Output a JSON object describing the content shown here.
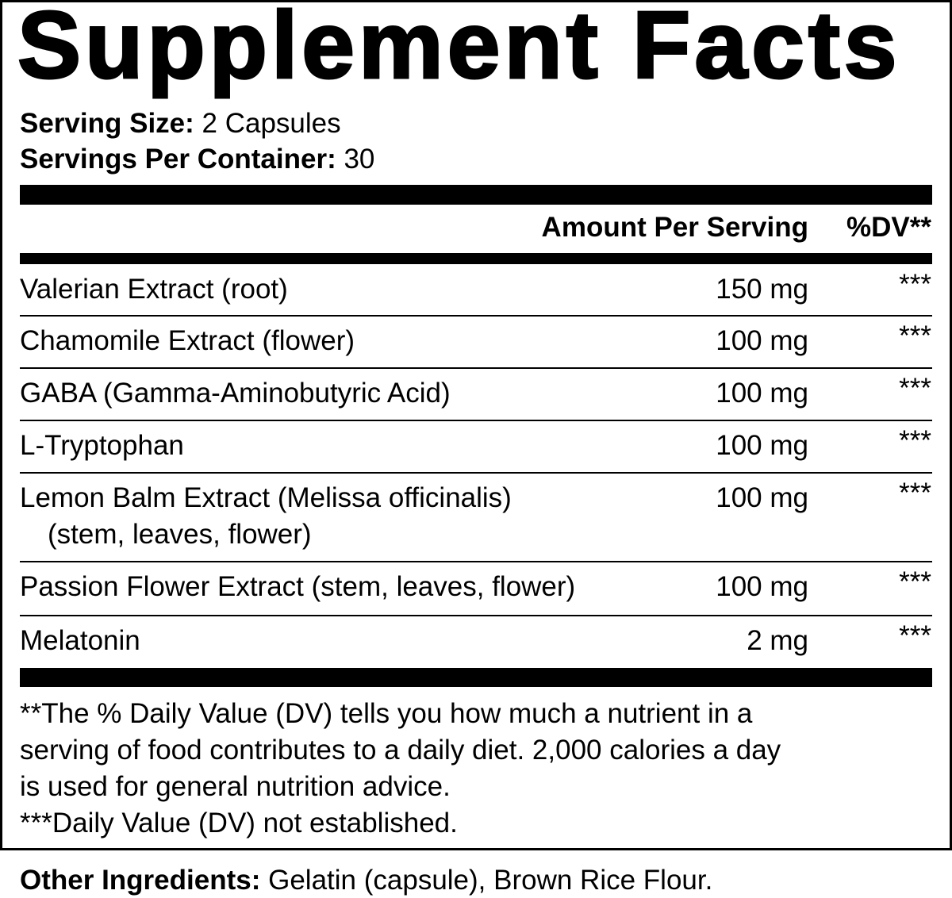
{
  "title": "Supplement Facts",
  "serving_size": {
    "label": "Serving Size:",
    "value": "2 Capsules"
  },
  "servings_per_container": {
    "label": "Servings Per Container:",
    "value": "30"
  },
  "header": {
    "amount": "Amount Per Serving",
    "dv": "%DV**"
  },
  "rows": [
    {
      "name": "Valerian Extract (root)",
      "amount": "150 mg",
      "dv": "***"
    },
    {
      "name": "Chamomile Extract (flower)",
      "amount": "100 mg",
      "dv": "***"
    },
    {
      "name": "GABA (Gamma-Aminobutyric Acid)",
      "amount": "100 mg",
      "dv": "***"
    },
    {
      "name": "L-Tryptophan",
      "amount": "100 mg",
      "dv": "***"
    },
    {
      "name": "Lemon Balm Extract (Melissa officinalis)",
      "sub": "(stem, leaves, flower)",
      "amount": "100 mg",
      "dv": "***"
    },
    {
      "name": "Passion Flower Extract (stem, leaves, flower)",
      "amount": "100 mg",
      "dv": "***"
    },
    {
      "name": "Melatonin",
      "amount": "2 mg",
      "dv": "***"
    }
  ],
  "footnotes": {
    "line1": "**The % Daily Value (DV) tells you how much a nutrient in a",
    "line2": "serving of food contributes to a daily diet. 2,000 calories a day",
    "line3": "is used for general nutrition advice.",
    "line4": "***Daily Value (DV) not established."
  },
  "other_ingredients": {
    "label": "Other Ingredients:",
    "value": "Gelatin (capsule), Brown Rice Flour."
  }
}
